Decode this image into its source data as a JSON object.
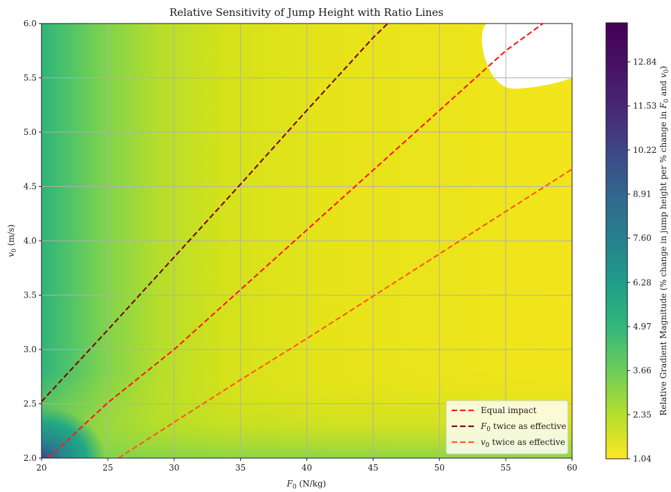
{
  "chart_data": {
    "type": "heatmap",
    "title": "Relative Sensitivity of Jump Height with Ratio Lines",
    "xlabel": {
      "main": "F",
      "sub": "0",
      "rest": " (N/kg)"
    },
    "ylabel": {
      "main": "v",
      "sub": "0",
      "rest": " (m/s)"
    },
    "xlim": [
      20,
      60
    ],
    "ylim": [
      2.0,
      6.0
    ],
    "xticks": [
      20,
      25,
      30,
      35,
      40,
      45,
      50,
      55,
      60
    ],
    "yticks": [
      2.0,
      2.5,
      3.0,
      3.5,
      4.0,
      4.5,
      5.0,
      5.5,
      6.0
    ],
    "xtick_labels": [
      "20",
      "25",
      "30",
      "35",
      "40",
      "45",
      "50",
      "55",
      "60"
    ],
    "ytick_labels": [
      "2.0",
      "2.5",
      "3.0",
      "3.5",
      "4.0",
      "4.5",
      "5.0",
      "5.5",
      "6.0"
    ],
    "grid": true,
    "colormap": "viridis_r",
    "colorbar": {
      "label": {
        "pre": "Relative Gradient Magnitude (% change in jump height per % change in ",
        "f": "F",
        "fsub": "0",
        "mid": " and ",
        "v": "v",
        "vsub": "0",
        "post": ")"
      },
      "min": 1.04,
      "max": 14.0,
      "ticks": [
        1.04,
        2.35,
        3.66,
        4.97,
        6.28,
        7.6,
        8.91,
        10.22,
        11.53,
        12.84
      ],
      "tick_labels": [
        "1.04",
        "2.35",
        "3.66",
        "4.97",
        "6.28",
        "7.60",
        "8.91",
        "10.22",
        "11.53",
        "12.84"
      ]
    },
    "series": [
      {
        "name": "Equal impact",
        "legend": {
          "pre": "Equal impact",
          "sub": "",
          "post": ""
        },
        "color": "#ff1a1a",
        "dash": "dashed",
        "x": [
          20.5,
          25,
          30,
          35,
          40,
          45,
          50,
          55,
          57.8
        ],
        "y": [
          2.0,
          2.51,
          3.0,
          3.55,
          4.1,
          4.65,
          5.2,
          5.75,
          6.0
        ]
      },
      {
        "name": "F0 twice as effective",
        "legend": {
          "pre": "F",
          "sub": "0",
          "post": " twice as effective"
        },
        "color": "#7a0a0a",
        "dash": "dashed",
        "x": [
          20,
          25,
          30,
          35,
          40,
          45,
          46.1
        ],
        "y": [
          2.52,
          3.18,
          3.85,
          4.52,
          5.2,
          5.87,
          6.0
        ]
      },
      {
        "name": "v0 twice as effective",
        "legend": {
          "pre": "v",
          "sub": "0",
          "post": " twice as effective"
        },
        "color": "#ff5a1a",
        "dash": "dashed",
        "x": [
          25.8,
          30,
          35,
          40,
          45,
          50,
          55,
          60
        ],
        "y": [
          2.0,
          2.33,
          2.72,
          3.1,
          3.49,
          3.88,
          4.27,
          4.66
        ]
      }
    ],
    "legend_position": "lower right"
  }
}
